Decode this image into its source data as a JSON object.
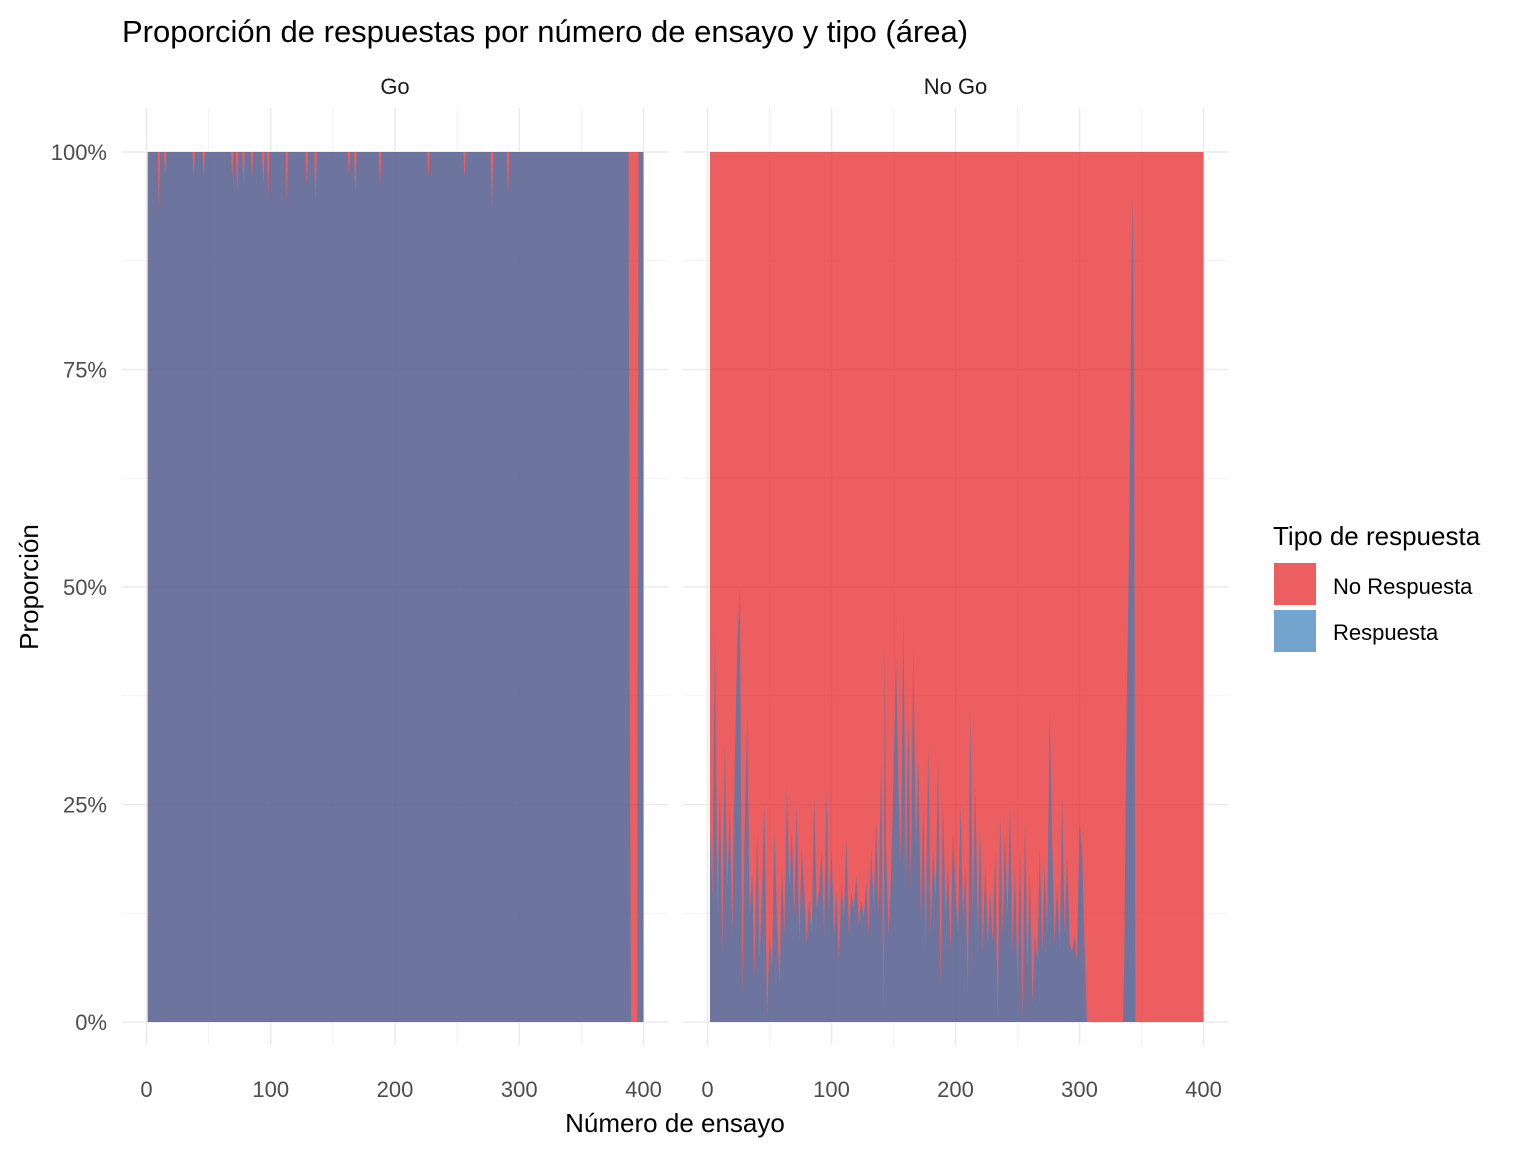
{
  "chart_data": {
    "type": "area",
    "title": "Proporción de respuestas por número de ensayo y tipo (área)",
    "xlabel": "Número de ensayo",
    "ylabel": "Proporción",
    "xlim": [
      0,
      400
    ],
    "ylim": [
      0,
      1
    ],
    "x_ticks": [
      0,
      100,
      200,
      300,
      400
    ],
    "y_ticks": [
      "0%",
      "25%",
      "50%",
      "75%",
      "100%"
    ],
    "stacked": true,
    "grid": true,
    "legend": {
      "title": "Tipo de respuesta",
      "position": "right",
      "entries": [
        {
          "label": "No Respuesta",
          "color": "#E41A1C"
        },
        {
          "label": "Respuesta",
          "color": "#377EB8"
        }
      ]
    },
    "facets": [
      {
        "label": "Go",
        "x_range": [
          1,
          400
        ],
        "series": [
          {
            "name": "Respuesta",
            "points": [
              [
                1,
                1.0
              ],
              [
                9,
                1.0
              ],
              [
                10,
                0.93
              ],
              [
                11,
                1.0
              ],
              [
                14,
                1.0
              ],
              [
                15,
                0.97
              ],
              [
                16,
                1.0
              ],
              [
                37,
                1.0
              ],
              [
                38,
                0.97
              ],
              [
                39,
                1.0
              ],
              [
                45,
                1.0
              ],
              [
                46,
                0.97
              ],
              [
                47,
                1.0
              ],
              [
                68,
                1.0
              ],
              [
                69,
                0.97
              ],
              [
                70,
                1.0
              ],
              [
                72,
                1.0
              ],
              [
                73,
                0.95
              ],
              [
                74,
                1.0
              ],
              [
                77,
                1.0
              ],
              [
                78,
                0.96
              ],
              [
                79,
                1.0
              ],
              [
                84,
                1.0
              ],
              [
                85,
                0.97
              ],
              [
                86,
                1.0
              ],
              [
                93,
                1.0
              ],
              [
                94,
                0.96
              ],
              [
                95,
                1.0
              ],
              [
                97,
                1.0
              ],
              [
                98,
                0.95
              ],
              [
                99,
                1.0
              ],
              [
                112,
                1.0
              ],
              [
                113,
                0.94
              ],
              [
                114,
                1.0
              ],
              [
                128,
                1.0
              ],
              [
                129,
                0.96
              ],
              [
                130,
                1.0
              ],
              [
                135,
                1.0
              ],
              [
                136,
                0.94
              ],
              [
                137,
                1.0
              ],
              [
                162,
                1.0
              ],
              [
                163,
                0.97
              ],
              [
                164,
                1.0
              ],
              [
                167,
                1.0
              ],
              [
                168,
                0.95
              ],
              [
                169,
                1.0
              ],
              [
                187,
                1.0
              ],
              [
                188,
                0.96
              ],
              [
                189,
                1.0
              ],
              [
                226,
                1.0
              ],
              [
                227,
                0.97
              ],
              [
                228,
                1.0
              ],
              [
                255,
                1.0
              ],
              [
                256,
                0.97
              ],
              [
                257,
                1.0
              ],
              [
                277,
                1.0
              ],
              [
                278,
                0.93
              ],
              [
                279,
                1.0
              ],
              [
                290,
                1.0
              ],
              [
                291,
                0.95
              ],
              [
                292,
                1.0
              ],
              [
                388,
                1.0
              ],
              [
                389,
                0.33
              ],
              [
                390,
                0.0
              ],
              [
                395,
                0.0
              ],
              [
                396,
                1.0
              ],
              [
                400,
                1.0
              ]
            ]
          },
          {
            "name": "No Respuesta",
            "note_complement": true
          }
        ]
      },
      {
        "label": "No Go",
        "x_range": [
          2,
          400
        ],
        "series": [
          {
            "name": "Respuesta",
            "points": [
              [
                2,
                0.23
              ],
              [
                4,
                0.14
              ],
              [
                6,
                0.45
              ],
              [
                8,
                0.12
              ],
              [
                10,
                0.27
              ],
              [
                12,
                0.08
              ],
              [
                14,
                0.32
              ],
              [
                16,
                0.15
              ],
              [
                18,
                0.25
              ],
              [
                20,
                0.1
              ],
              [
                22,
                0.3
              ],
              [
                24,
                0.43
              ],
              [
                26,
                0.5
              ],
              [
                28,
                0.03
              ],
              [
                30,
                0.22
              ],
              [
                32,
                0.35
              ],
              [
                34,
                0.12
              ],
              [
                36,
                0.17
              ],
              [
                38,
                0.05
              ],
              [
                40,
                0.22
              ],
              [
                42,
                0.07
              ],
              [
                44,
                0.15
              ],
              [
                46,
                0.25
              ],
              [
                48,
                0.0
              ],
              [
                50,
                0.1
              ],
              [
                52,
                0.06
              ],
              [
                54,
                0.22
              ],
              [
                56,
                0.12
              ],
              [
                58,
                0.04
              ],
              [
                60,
                0.18
              ],
              [
                62,
                0.1
              ],
              [
                64,
                0.27
              ],
              [
                66,
                0.15
              ],
              [
                68,
                0.22
              ],
              [
                70,
                0.12
              ],
              [
                72,
                0.25
              ],
              [
                74,
                0.09
              ],
              [
                76,
                0.2
              ],
              [
                78,
                0.15
              ],
              [
                80,
                0.09
              ],
              [
                82,
                0.14
              ],
              [
                84,
                0.1
              ],
              [
                86,
                0.26
              ],
              [
                88,
                0.13
              ],
              [
                90,
                0.15
              ],
              [
                92,
                0.2
              ],
              [
                94,
                0.1
              ],
              [
                96,
                0.27
              ],
              [
                98,
                0.12
              ],
              [
                100,
                0.2
              ],
              [
                102,
                0.1
              ],
              [
                104,
                0.15
              ],
              [
                106,
                0.07
              ],
              [
                108,
                0.16
              ],
              [
                110,
                0.12
              ],
              [
                112,
                0.21
              ],
              [
                114,
                0.1
              ],
              [
                116,
                0.15
              ],
              [
                118,
                0.13
              ],
              [
                120,
                0.17
              ],
              [
                122,
                0.11
              ],
              [
                124,
                0.14
              ],
              [
                126,
                0.12
              ],
              [
                128,
                0.16
              ],
              [
                130,
                0.1
              ],
              [
                132,
                0.2
              ],
              [
                134,
                0.13
              ],
              [
                136,
                0.23
              ],
              [
                138,
                0.12
              ],
              [
                140,
                0.3
              ],
              [
                142,
                0.0
              ],
              [
                143,
                0.44
              ],
              [
                144,
                0.2
              ],
              [
                146,
                0.1
              ],
              [
                148,
                0.17
              ],
              [
                150,
                0.28
              ],
              [
                152,
                0.42
              ],
              [
                154,
                0.27
              ],
              [
                156,
                0.18
              ],
              [
                158,
                0.47
              ],
              [
                160,
                0.15
              ],
              [
                162,
                0.35
              ],
              [
                164,
                0.15
              ],
              [
                166,
                0.43
              ],
              [
                168,
                0.2
              ],
              [
                170,
                0.3
              ],
              [
                172,
                0.12
              ],
              [
                174,
                0.25
              ],
              [
                176,
                0.08
              ],
              [
                178,
                0.32
              ],
              [
                180,
                0.1
              ],
              [
                182,
                0.2
              ],
              [
                184,
                0.14
              ],
              [
                186,
                0.3
              ],
              [
                188,
                0.04
              ],
              [
                190,
                0.25
              ],
              [
                192,
                0.12
              ],
              [
                194,
                0.18
              ],
              [
                196,
                0.08
              ],
              [
                198,
                0.22
              ],
              [
                200,
                0.15
              ],
              [
                202,
                0.1
              ],
              [
                204,
                0.25
              ],
              [
                206,
                0.12
              ],
              [
                208,
                0.18
              ],
              [
                210,
                0.03
              ],
              [
                212,
                0.36
              ],
              [
                214,
                0.12
              ],
              [
                216,
                0.27
              ],
              [
                218,
                0.1
              ],
              [
                220,
                0.22
              ],
              [
                222,
                0.08
              ],
              [
                224,
                0.18
              ],
              [
                226,
                0.09
              ],
              [
                228,
                0.15
              ],
              [
                230,
                0.09
              ],
              [
                232,
                0.2
              ],
              [
                234,
                0.0
              ],
              [
                236,
                0.24
              ],
              [
                238,
                0.1
              ],
              [
                240,
                0.22
              ],
              [
                242,
                0.12
              ],
              [
                244,
                0.25
              ],
              [
                246,
                0.08
              ],
              [
                248,
                0.18
              ],
              [
                250,
                0.04
              ],
              [
                252,
                0.2
              ],
              [
                254,
                0.0
              ],
              [
                256,
                0.23
              ],
              [
                258,
                0.06
              ],
              [
                260,
                0.17
              ],
              [
                262,
                0.02
              ],
              [
                264,
                0.1
              ],
              [
                266,
                0.07
              ],
              [
                268,
                0.2
              ],
              [
                270,
                0.08
              ],
              [
                272,
                0.18
              ],
              [
                274,
                0.1
              ],
              [
                276,
                0.36
              ],
              [
                278,
                0.2
              ],
              [
                280,
                0.09
              ],
              [
                282,
                0.16
              ],
              [
                284,
                0.08
              ],
              [
                286,
                0.26
              ],
              [
                288,
                0.1
              ],
              [
                290,
                0.19
              ],
              [
                292,
                0.09
              ],
              [
                294,
                0.08
              ],
              [
                296,
                0.1
              ],
              [
                298,
                0.07
              ],
              [
                300,
                0.23
              ],
              [
                302,
                0.2
              ],
              [
                304,
                0.09
              ],
              [
                306,
                0.0
              ],
              [
                335,
                0.0
              ],
              [
                336,
                0.06
              ],
              [
                338,
                0.35
              ],
              [
                340,
                0.55
              ],
              [
                341,
                0.7
              ],
              [
                342,
                0.86
              ],
              [
                343,
                0.95
              ],
              [
                344,
                0.7
              ],
              [
                345,
                0.0
              ],
              [
                400,
                0.0
              ]
            ]
          },
          {
            "name": "No Respuesta",
            "note_complement": true
          }
        ]
      }
    ]
  }
}
